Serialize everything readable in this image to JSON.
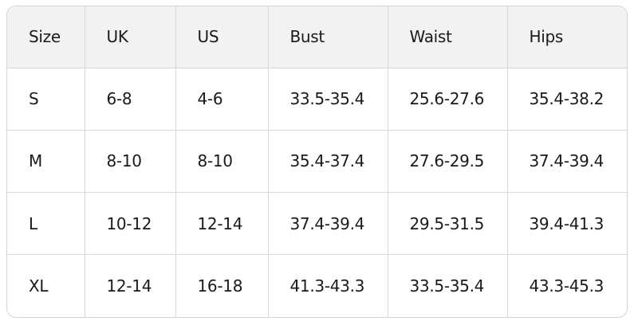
{
  "table": {
    "headers": [
      "Size",
      "UK",
      "US",
      "Bust",
      "Waist",
      "Hips"
    ],
    "rows": [
      [
        "S",
        "6-8",
        "4-6",
        "33.5-35.4",
        "25.6-27.6",
        "35.4-38.2"
      ],
      [
        "M",
        "8-10",
        "8-10",
        "35.4-37.4",
        "27.6-29.5",
        "37.4-39.4"
      ],
      [
        "L",
        "10-12",
        "12-14",
        "37.4-39.4",
        "29.5-31.5",
        "39.4-41.3"
      ],
      [
        "XL",
        "12-14",
        "16-18",
        "41.3-43.3",
        "33.5-35.4",
        "43.3-45.3"
      ]
    ]
  }
}
